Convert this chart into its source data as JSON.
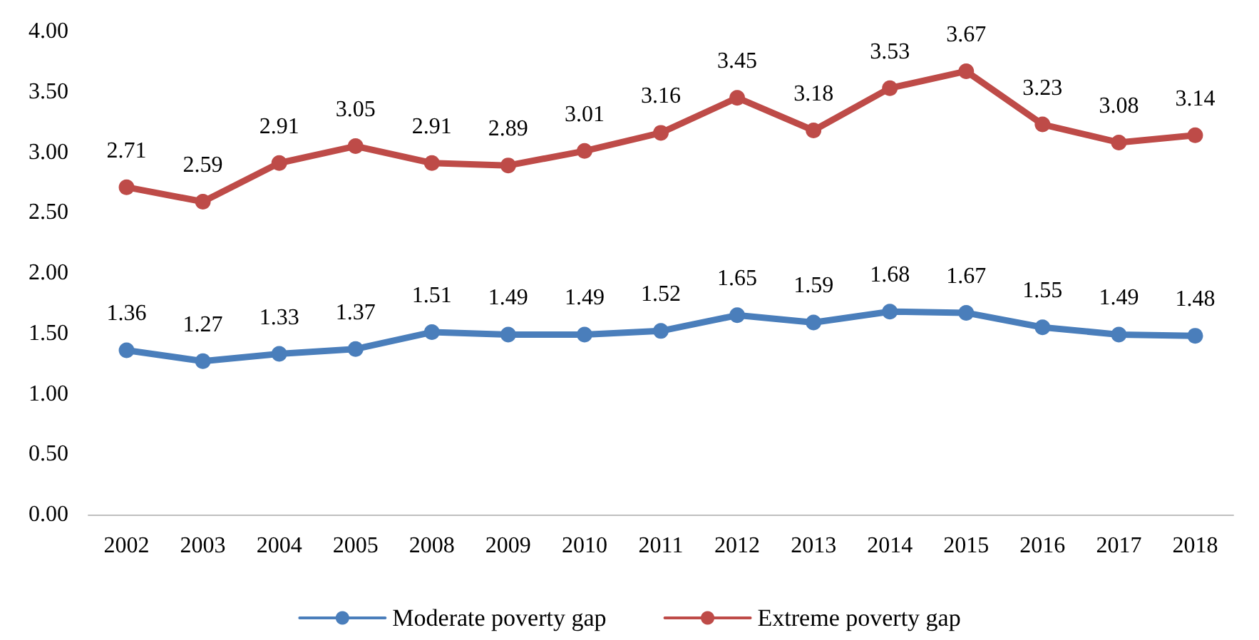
{
  "chart_data": {
    "type": "line",
    "categories": [
      "2002",
      "2003",
      "2004",
      "2005",
      "2008",
      "2009",
      "2010",
      "2011",
      "2012",
      "2013",
      "2014",
      "2015",
      "2016",
      "2017",
      "2018"
    ],
    "series": [
      {
        "name": "Moderate poverty gap",
        "color": "#4a7ebb",
        "values": [
          1.36,
          1.27,
          1.33,
          1.37,
          1.51,
          1.49,
          1.49,
          1.52,
          1.65,
          1.59,
          1.68,
          1.67,
          1.55,
          1.49,
          1.48
        ]
      },
      {
        "name": "Extreme poverty gap",
        "color": "#be4b48",
        "values": [
          2.71,
          2.59,
          2.91,
          3.05,
          2.91,
          2.89,
          3.01,
          3.16,
          3.45,
          3.18,
          3.53,
          3.67,
          3.23,
          3.08,
          3.14
        ]
      }
    ],
    "ylim": [
      0,
      4
    ],
    "yticks": [
      {
        "value": 0,
        "label": "0.00"
      },
      {
        "value": 0.5,
        "label": "0.50"
      },
      {
        "value": 1,
        "label": "1.00"
      },
      {
        "value": 1.5,
        "label": "1.50"
      },
      {
        "value": 2,
        "label": "2.00"
      },
      {
        "value": 2.5,
        "label": "2.50"
      },
      {
        "value": 3,
        "label": "3.00"
      },
      {
        "value": 3.5,
        "label": "3.50"
      },
      {
        "value": 4,
        "label": "4.00"
      }
    ],
    "grid": false,
    "legend": "bottom",
    "marker": "circle",
    "line_style": "solid",
    "data_labels": true
  }
}
